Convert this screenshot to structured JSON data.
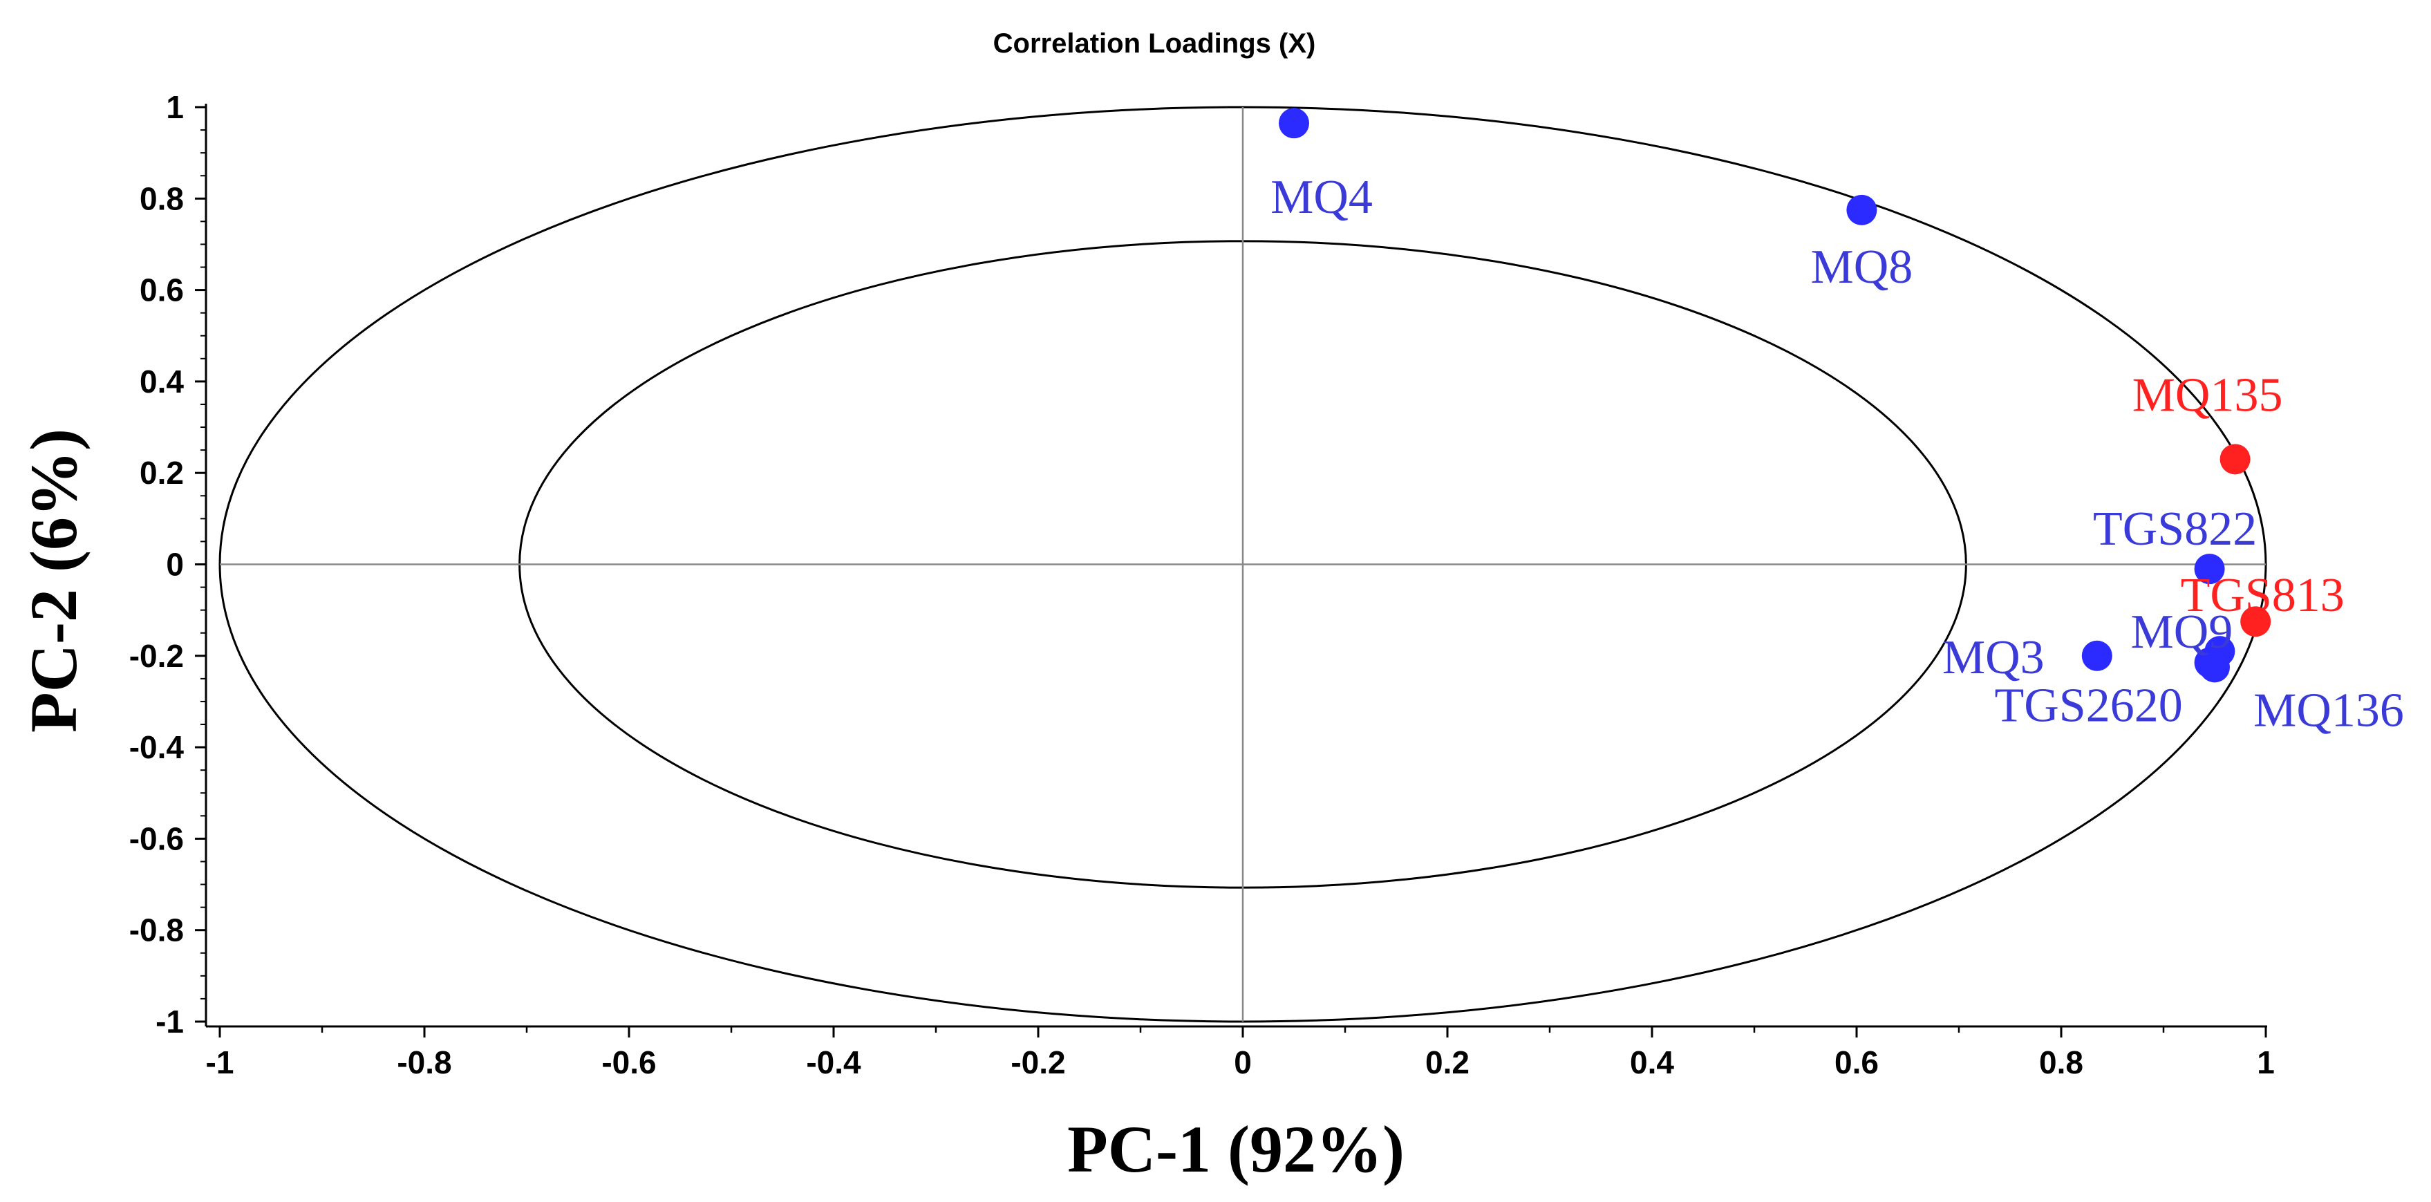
{
  "chart_data": {
    "type": "scatter",
    "title": "Correlation Loadings (X)",
    "xlabel": "PC-1 (92%)",
    "ylabel": "PC-2 (6%)",
    "xlim": [
      -1,
      1
    ],
    "ylim": [
      -1,
      1
    ],
    "xticks": [
      "-1",
      "-0.8",
      "-0.6",
      "-0.4",
      "-0.2",
      "0",
      "0.2",
      "0.4",
      "0.6",
      "0.8",
      "1"
    ],
    "yticks": [
      "1",
      "0.8",
      "0.6",
      "0.4",
      "0.2",
      "0",
      "-0.2",
      "-0.4",
      "-0.6",
      "-0.8",
      "-1"
    ],
    "circles": [
      {
        "name": "outer",
        "radius": 1.0
      },
      {
        "name": "inner",
        "radius": 0.707
      }
    ],
    "colors": {
      "blue": "#2b2bff",
      "red": "#ff2020",
      "blue_text": "#3a3ad8",
      "red_text": "#ff2020"
    },
    "points": [
      {
        "name": "MQ4",
        "x": 0.05,
        "y": 0.965,
        "color": "blue"
      },
      {
        "name": "MQ8",
        "x": 0.605,
        "y": 0.775,
        "color": "blue"
      },
      {
        "name": "MQ135",
        "x": 0.97,
        "y": 0.23,
        "color": "red"
      },
      {
        "name": "TGS822",
        "x": 0.945,
        "y": -0.01,
        "color": "blue"
      },
      {
        "name": "TGS813",
        "x": 0.99,
        "y": -0.125,
        "color": "red"
      },
      {
        "name": "MQ9",
        "x": 0.955,
        "y": -0.19,
        "color": "blue"
      },
      {
        "name": "MQ3",
        "x": 0.835,
        "y": -0.2,
        "color": "blue"
      },
      {
        "name": "TGS2620",
        "x": 0.945,
        "y": -0.215,
        "color": "blue"
      },
      {
        "name": "MQ136",
        "x": 0.95,
        "y": -0.225,
        "color": "blue"
      }
    ]
  }
}
